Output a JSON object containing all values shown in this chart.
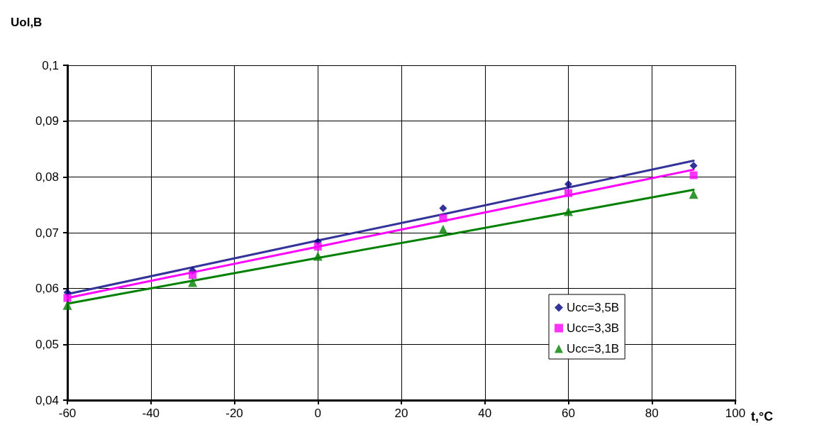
{
  "chart_data": {
    "type": "scatter",
    "xlabel": "t,°C",
    "ylabel": "Uol,B",
    "xlim": [
      -60,
      100
    ],
    "xticks": [
      -60,
      -40,
      -20,
      0,
      20,
      40,
      60,
      80,
      100
    ],
    "ylim": [
      0.04,
      0.1
    ],
    "yticks": [
      {
        "value": 0.04,
        "label": "0,04"
      },
      {
        "value": 0.05,
        "label": "0,05"
      },
      {
        "value": 0.06,
        "label": "0,06"
      },
      {
        "value": 0.07,
        "label": "0,07"
      },
      {
        "value": 0.08,
        "label": "0,08"
      },
      {
        "value": 0.09,
        "label": "0,09"
      },
      {
        "value": 0.1,
        "label": "0,1"
      }
    ],
    "grid": true,
    "legend": "bottom right",
    "x": [
      -60,
      -30,
      0,
      30,
      60,
      90
    ],
    "series": [
      {
        "name": "Ucc=3,5B",
        "color": "#000080",
        "marker": "diamond",
        "values": [
          0.0593,
          0.0632,
          0.0684,
          0.0744,
          0.0787,
          0.082
        ]
      },
      {
        "name": "Ucc=3,3B",
        "color": "#ff00ff",
        "marker": "square",
        "values": [
          0.0583,
          0.0624,
          0.0675,
          0.0726,
          0.0771,
          0.0803
        ]
      },
      {
        "name": "Ucc=3,1B",
        "color": "#008000",
        "marker": "triangle",
        "values": [
          0.057,
          0.0611,
          0.0658,
          0.0706,
          0.0738,
          0.0769
        ]
      },
      {
        "type": "line",
        "color": "#333399",
        "marker": "none",
        "values": [
          0.059,
          0.0638,
          0.0686,
          0.0733,
          0.0781,
          0.0829
        ]
      },
      {
        "type": "line",
        "color": "#ff00ff",
        "marker": "none",
        "values": [
          0.0583,
          0.0629,
          0.0675,
          0.0721,
          0.0767,
          0.0813
        ]
      },
      {
        "type": "line",
        "color": "#008000",
        "marker": "none",
        "values": [
          0.0573,
          0.0614,
          0.0655,
          0.0695,
          0.0736,
          0.0777
        ]
      }
    ]
  }
}
